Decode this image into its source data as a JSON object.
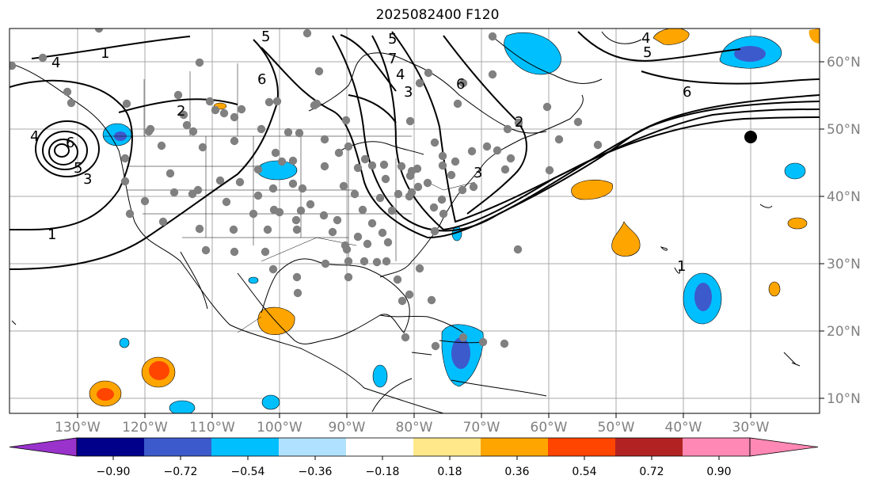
{
  "title": "2025082400 F120",
  "map": {
    "lon_ticks": [
      "130°W",
      "120°W",
      "110°W",
      "100°W",
      "90°W",
      "80°W",
      "70°W",
      "60°W",
      "50°W",
      "40°W",
      "30°W"
    ],
    "lat_ticks": [
      "60°N",
      "50°N",
      "40°N",
      "30°N",
      "20°N",
      "10°N"
    ],
    "contour_labels": [
      "6",
      "5",
      "4",
      "3",
      "2",
      "1",
      "1",
      "6",
      "5",
      "4",
      "4",
      "5",
      "6",
      "3",
      "2",
      "7",
      "6",
      "5",
      "4",
      "3",
      "1"
    ],
    "marker": "black-dot"
  },
  "colorbar": {
    "ticks": [
      "−0.90",
      "−0.72",
      "−0.54",
      "−0.36",
      "−0.18",
      "0.18",
      "0.36",
      "0.54",
      "0.72",
      "0.90"
    ],
    "colors": [
      "#9933cc",
      "#00008b",
      "#3c5acc",
      "#00bfff",
      "#b0e2ff",
      "#ffffff",
      "#ffe88a",
      "#ffa500",
      "#ff4500",
      "#b22222",
      "#ff88b4"
    ],
    "extend": "both"
  }
}
